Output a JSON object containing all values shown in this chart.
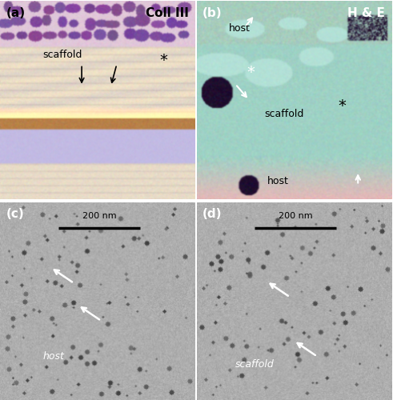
{
  "figure_width": 4.91,
  "figure_height": 5.0,
  "dpi": 100,
  "bg_color": "#ffffff",
  "panel_a": {
    "label": "(a)",
    "title": "Coll III",
    "label_color": "black",
    "title_color": "black",
    "title_fontsize": 11,
    "label_fontsize": 11,
    "label_fontweight": "bold",
    "title_fontweight": "bold"
  },
  "panel_b": {
    "label": "(b)",
    "title": "H & E",
    "label_color": "white",
    "title_color": "white",
    "title_fontsize": 11,
    "label_fontsize": 11,
    "label_fontweight": "bold",
    "title_fontweight": "bold"
  },
  "panel_c": {
    "label": "(c)",
    "label_color": "white",
    "label_fontsize": 11,
    "label_fontweight": "bold"
  },
  "panel_d": {
    "label": "(d)",
    "label_color": "white",
    "label_fontsize": 11,
    "label_fontweight": "bold"
  }
}
